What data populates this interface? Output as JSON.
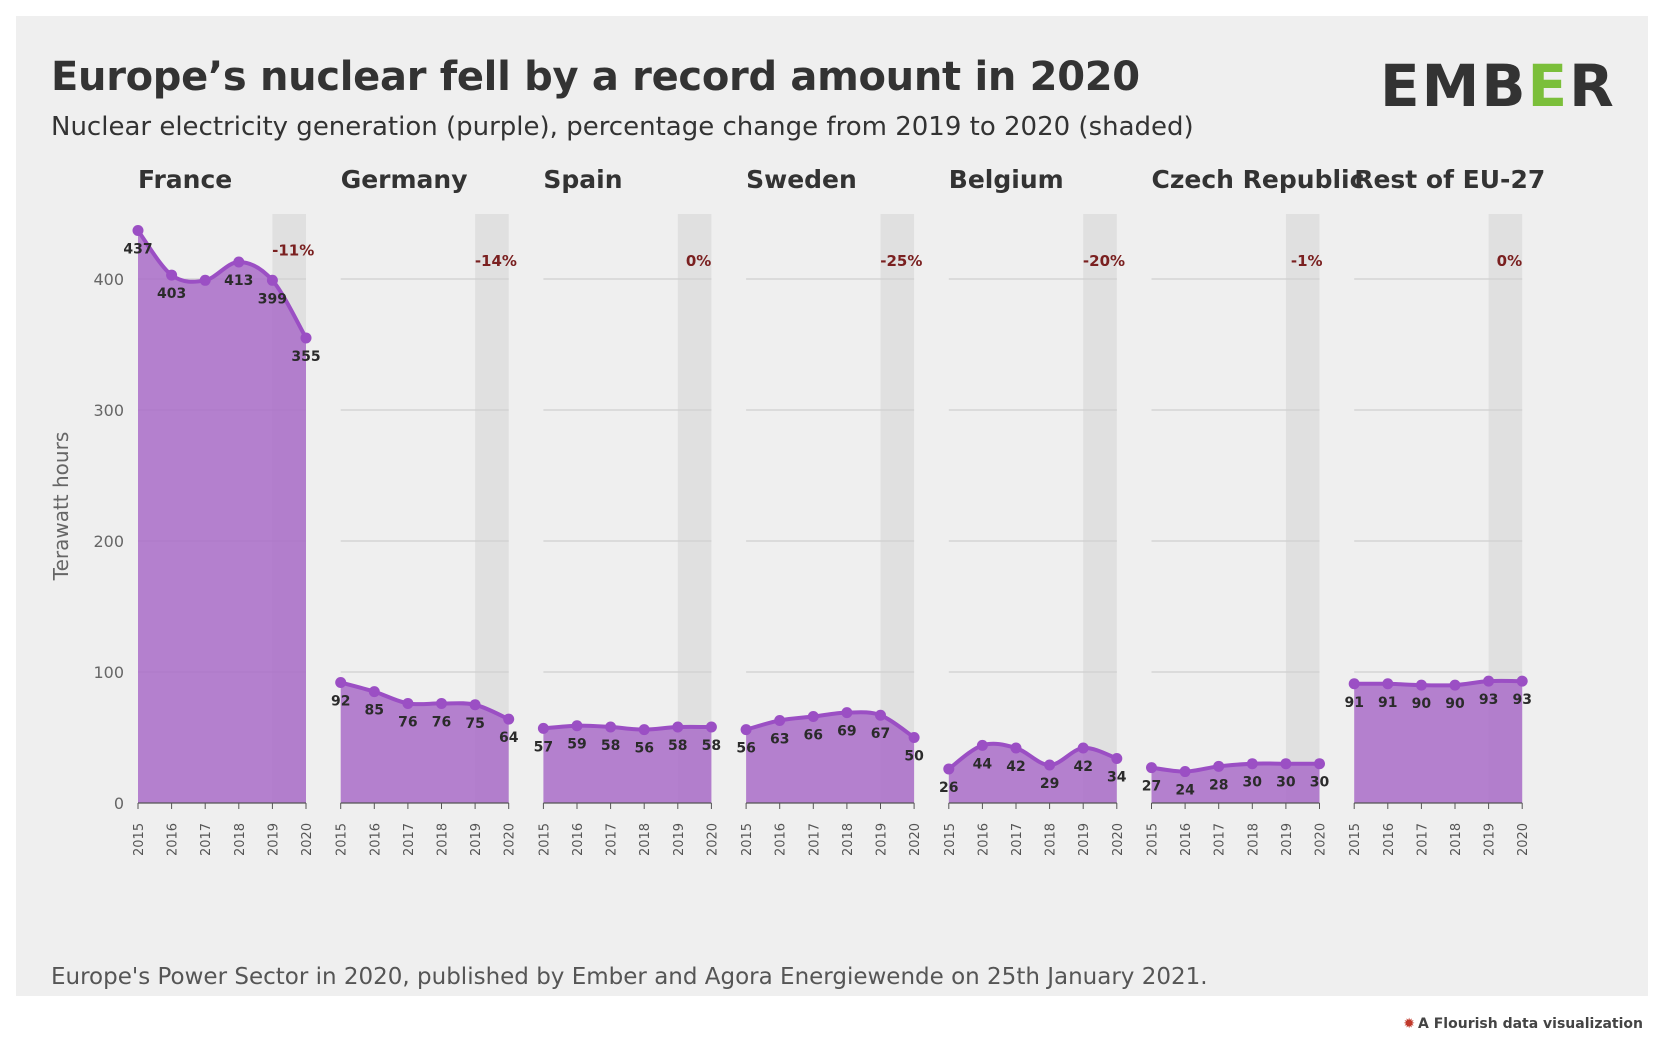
{
  "header": {
    "title": "Europe’s nuclear fell by a record amount in 2020",
    "subtitle": "Nuclear electricity generation (purple), percentage change from 2019 to 2020 (shaded)",
    "logo_text": "EMBER"
  },
  "footer": {
    "source": "Europe's Power Sector in 2020, published by Ember and Agora Energiewende on 25th January 2021.",
    "credit": "A Flourish data visualization"
  },
  "colors": {
    "area": "#a96cc8",
    "line": "#9b4fc4",
    "shade": "#e0e0e0",
    "change_label": "#7a2020",
    "grid": "#cfcfcf"
  },
  "chart_data": {
    "type": "area",
    "ylabel": "Terawatt hours",
    "ylim": [
      0,
      460
    ],
    "yticks": [
      0,
      100,
      200,
      300,
      400
    ],
    "x": [
      "2015",
      "2016",
      "2017",
      "2018",
      "2019",
      "2020"
    ],
    "shaded_range": [
      "2019",
      "2020"
    ],
    "grid": true,
    "panels": [
      {
        "name": "France",
        "values": [
          437,
          403,
          399,
          413,
          399,
          355
        ],
        "labels": [
          "437",
          "403",
          "",
          "413",
          "399",
          "355"
        ],
        "change": "-11%"
      },
      {
        "name": "Germany",
        "values": [
          92,
          85,
          76,
          76,
          75,
          64
        ],
        "labels": [
          "92",
          "85",
          "76",
          "76",
          "75",
          "64"
        ],
        "change": "-14%"
      },
      {
        "name": "Spain",
        "values": [
          57,
          59,
          58,
          56,
          58,
          58
        ],
        "labels": [
          "57",
          "59",
          "58",
          "56",
          "58",
          "58"
        ],
        "change": "0%"
      },
      {
        "name": "Sweden",
        "values": [
          56,
          63,
          66,
          69,
          67,
          50
        ],
        "labels": [
          "56",
          "63",
          "66",
          "69",
          "67",
          "50"
        ],
        "change": "-25%"
      },
      {
        "name": "Belgium",
        "values": [
          26,
          44,
          42,
          29,
          42,
          34
        ],
        "labels": [
          "26",
          "44",
          "42",
          "29",
          "42",
          "34"
        ],
        "change": "-20%"
      },
      {
        "name": "Czech Republic",
        "values": [
          27,
          24,
          28,
          30,
          30,
          30
        ],
        "labels": [
          "27",
          "24",
          "28",
          "30",
          "30",
          "30"
        ],
        "change": "-1%"
      },
      {
        "name": "Rest of EU-27",
        "values": [
          91,
          91,
          90,
          90,
          93,
          93
        ],
        "labels": [
          "91",
          "91",
          "90",
          "90",
          "93",
          "93"
        ],
        "change": "0%"
      }
    ]
  }
}
